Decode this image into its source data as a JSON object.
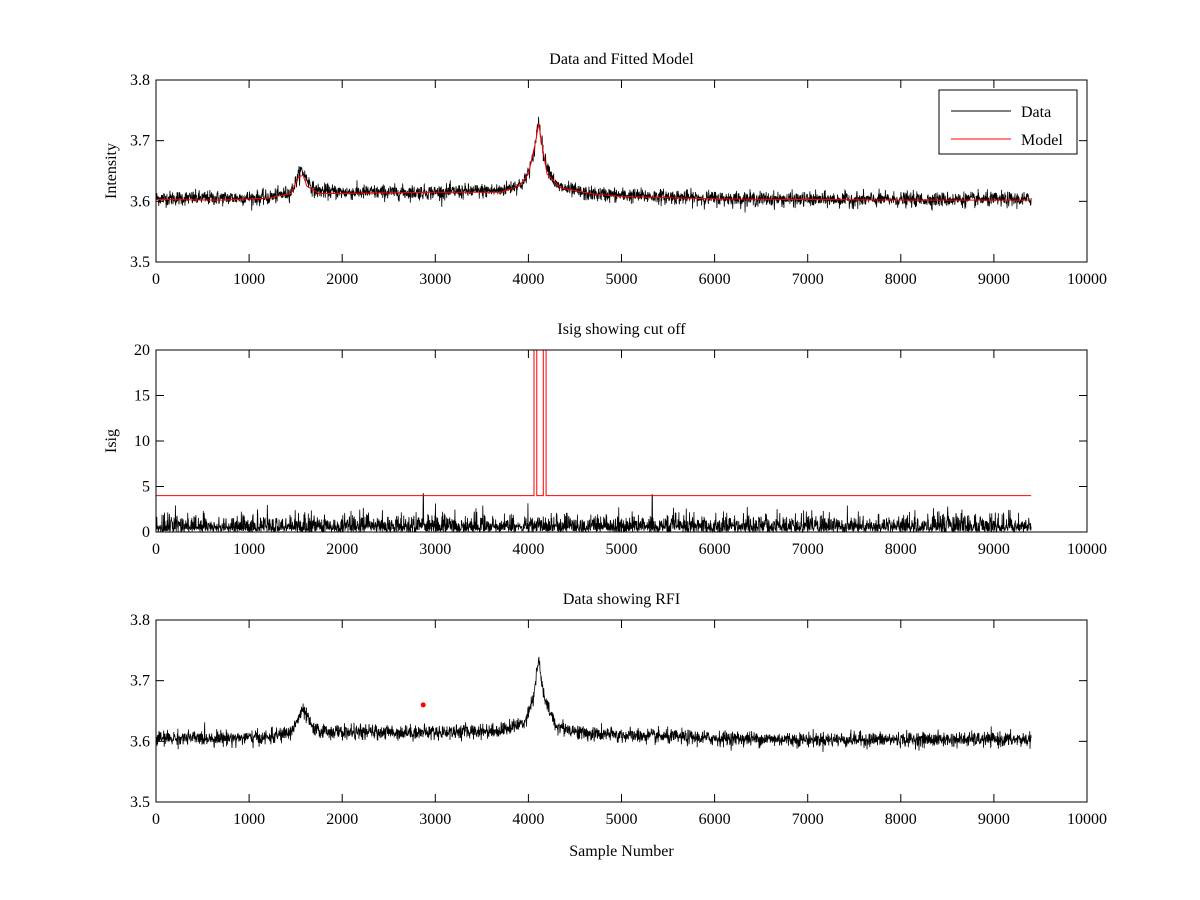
{
  "chart_data": [
    {
      "type": "line",
      "title": "Data and Fitted Model",
      "xlabel": "",
      "ylabel": "Intensity",
      "xlim": [
        0,
        10000
      ],
      "ylim": [
        3.5,
        3.8
      ],
      "xticks": [
        "0",
        "1000",
        "2000",
        "3000",
        "4000",
        "5000",
        "6000",
        "7000",
        "8000",
        "9000",
        "10000"
      ],
      "yticks": [
        "3.5",
        "3.6",
        "3.7",
        "3.8"
      ],
      "grid": false,
      "legend": {
        "position": "top-right",
        "entries": [
          "Data",
          "Model"
        ]
      },
      "series": [
        {
          "name": "Data",
          "color": "#000000",
          "style": "noisy",
          "x_range": [
            0,
            9400
          ],
          "noise_amplitude": 0.011,
          "baseline": [
            [
              0,
              3.605
            ],
            [
              1200,
              3.606
            ],
            [
              1450,
              3.615
            ],
            [
              1560,
              3.652
            ],
            [
              1700,
              3.618
            ],
            [
              2000,
              3.615
            ],
            [
              3000,
              3.615
            ],
            [
              3700,
              3.618
            ],
            [
              3950,
              3.63
            ],
            [
              4050,
              3.67
            ],
            [
              4110,
              3.735
            ],
            [
              4170,
              3.67
            ],
            [
              4300,
              3.625
            ],
            [
              4600,
              3.613
            ],
            [
              5000,
              3.61
            ],
            [
              6000,
              3.605
            ],
            [
              7000,
              3.603
            ],
            [
              8000,
              3.603
            ],
            [
              9400,
              3.603
            ]
          ]
        },
        {
          "name": "Model",
          "color": "#ff0000",
          "style": "smooth",
          "points": [
            [
              0,
              3.603
            ],
            [
              700,
              3.602
            ],
            [
              1200,
              3.605
            ],
            [
              1450,
              3.613
            ],
            [
              1530,
              3.64
            ],
            [
              1580,
              3.643
            ],
            [
              1620,
              3.625
            ],
            [
              1750,
              3.613
            ],
            [
              2000,
              3.613
            ],
            [
              3000,
              3.615
            ],
            [
              3700,
              3.615
            ],
            [
              3900,
              3.625
            ],
            [
              4000,
              3.645
            ],
            [
              4080,
              3.7
            ],
            [
              4110,
              3.728
            ],
            [
              4140,
              3.7
            ],
            [
              4200,
              3.645
            ],
            [
              4350,
              3.622
            ],
            [
              4700,
              3.612
            ],
            [
              5000,
              3.608
            ],
            [
              6000,
              3.604
            ],
            [
              7000,
              3.603
            ],
            [
              8000,
              3.602
            ],
            [
              9400,
              3.602
            ]
          ]
        }
      ]
    },
    {
      "type": "line",
      "title": "Isig showing cut off",
      "xlabel": "",
      "ylabel": "Isig",
      "xlim": [
        0,
        10000
      ],
      "ylim": [
        0,
        20
      ],
      "xticks": [
        "0",
        "1000",
        "2000",
        "3000",
        "4000",
        "5000",
        "6000",
        "7000",
        "8000",
        "9000",
        "10000"
      ],
      "yticks": [
        "0",
        "5",
        "10",
        "15",
        "20"
      ],
      "grid": false,
      "series": [
        {
          "color": "#000000",
          "style": "noisy-positive",
          "x_range": [
            0,
            9400
          ],
          "noise_amplitude": 1.6,
          "spikes": [
            [
              2870,
              4.2
            ],
            [
              5330,
              4.1
            ]
          ]
        },
        {
          "color": "#ff0000",
          "style": "step",
          "points": [
            [
              0,
              4
            ],
            [
              4060,
              4
            ],
            [
              4060,
              20
            ],
            [
              4090,
              20
            ],
            [
              4090,
              4
            ],
            [
              4160,
              4
            ],
            [
              4160,
              20
            ],
            [
              4190,
              20
            ],
            [
              4190,
              4
            ],
            [
              9400,
              4
            ]
          ]
        }
      ]
    },
    {
      "type": "line",
      "title": "Data showing RFI",
      "xlabel": "Sample Number",
      "ylabel": "",
      "xlim": [
        0,
        10000
      ],
      "ylim": [
        3.5,
        3.8
      ],
      "xticks": [
        "0",
        "1000",
        "2000",
        "3000",
        "4000",
        "5000",
        "6000",
        "7000",
        "8000",
        "9000",
        "10000"
      ],
      "yticks": [
        "3.5",
        "3.6",
        "3.7",
        "3.8"
      ],
      "grid": false,
      "series": [
        {
          "color": "#000000",
          "style": "noisy",
          "x_range": [
            0,
            9400
          ],
          "noise_amplitude": 0.011,
          "baseline": [
            [
              0,
              3.605
            ],
            [
              1200,
              3.606
            ],
            [
              1450,
              3.615
            ],
            [
              1580,
              3.652
            ],
            [
              1700,
              3.618
            ],
            [
              2000,
              3.615
            ],
            [
              3000,
              3.615
            ],
            [
              3700,
              3.618
            ],
            [
              3950,
              3.63
            ],
            [
              4050,
              3.67
            ],
            [
              4110,
              3.735
            ],
            [
              4170,
              3.67
            ],
            [
              4300,
              3.625
            ],
            [
              4600,
              3.613
            ],
            [
              5000,
              3.61
            ],
            [
              6000,
              3.605
            ],
            [
              7000,
              3.603
            ],
            [
              8000,
              3.603
            ],
            [
              9400,
              3.603
            ]
          ]
        },
        {
          "color": "#ff0000",
          "style": "marker",
          "points": [
            [
              2870,
              3.66
            ]
          ]
        }
      ]
    }
  ]
}
